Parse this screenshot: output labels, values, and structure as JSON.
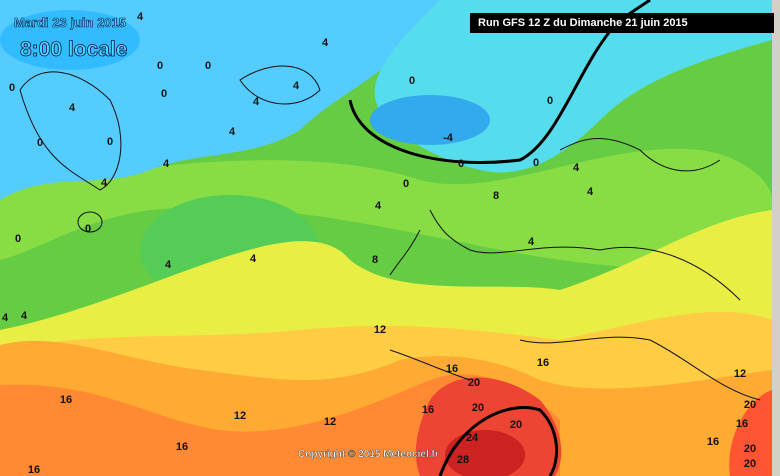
{
  "header": {
    "date": "Mardi 23 juin 2015",
    "time": "8:00 locale",
    "run": "Run GFS 12 Z du Dimanche 21 juin 2015"
  },
  "footer": {
    "copyright": "Copyright © 2015 Meteociel.fr"
  },
  "contour_labels": [
    "4",
    "0",
    "0",
    "0",
    "0",
    "4",
    "0",
    "0",
    "4",
    "4",
    "4",
    "4",
    "4",
    "4",
    "0",
    "0",
    "4",
    "4",
    "4",
    "4",
    "0",
    "0",
    "-4",
    "0",
    "0",
    "0",
    "4",
    "8",
    "4",
    "4",
    "4",
    "8",
    "12",
    "12",
    "16",
    "16",
    "16",
    "16",
    "20",
    "20",
    "20",
    "12",
    "12",
    "16",
    "24",
    "28",
    "16",
    "16",
    "20",
    "20",
    "20",
    "16"
  ]
}
